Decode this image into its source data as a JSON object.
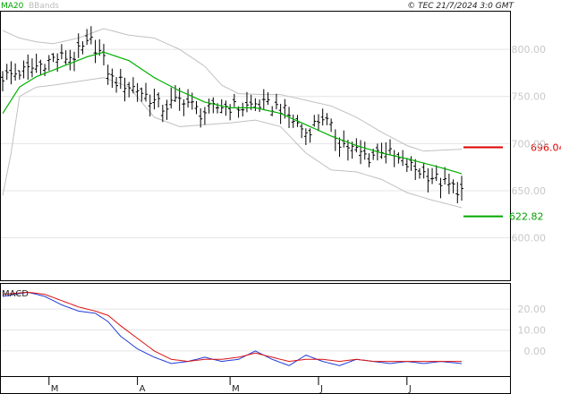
{
  "chart_data": [
    {
      "type": "line",
      "panel": "price",
      "legend": [
        "MA20",
        "BBands"
      ],
      "copyright": "© TEC 21/7/2024 3:0 GMT",
      "y_ticks": [
        800.0,
        750.0,
        700.0,
        650.0,
        600.0
      ],
      "y_tick_labels": [
        "800.00",
        "750.00",
        "700.00",
        "650.00",
        "600.00"
      ],
      "ylim": [
        555,
        840
      ],
      "x_month_labels": [
        "M",
        "A",
        "M",
        "J",
        "J"
      ],
      "x_month_index": [
        11,
        32,
        54,
        75,
        96
      ],
      "n_bars": 110,
      "resistance": {
        "label": "696.04",
        "value": 696.04,
        "color": "#dd0000"
      },
      "support": {
        "label": "622.82",
        "value": 622.82,
        "color": "#00aa00"
      },
      "ohlc_anchors": [
        [
          0,
          771
        ],
        [
          6,
          778
        ],
        [
          12,
          790
        ],
        [
          17,
          793
        ],
        [
          21,
          808
        ],
        [
          23,
          797
        ],
        [
          26,
          768
        ],
        [
          32,
          758
        ],
        [
          38,
          738
        ],
        [
          43,
          748
        ],
        [
          47,
          732
        ],
        [
          52,
          740
        ],
        [
          57,
          738
        ],
        [
          60,
          742
        ],
        [
          66,
          738
        ],
        [
          72,
          712
        ],
        [
          76,
          729
        ],
        [
          80,
          702
        ],
        [
          87,
          685
        ],
        [
          90,
          695
        ],
        [
          94,
          682
        ],
        [
          98,
          673
        ],
        [
          102,
          665
        ],
        [
          105,
          657
        ],
        [
          109,
          650
        ]
      ],
      "ma20_anchors": [
        [
          0,
          732
        ],
        [
          4,
          760
        ],
        [
          8,
          771
        ],
        [
          12,
          778
        ],
        [
          16,
          785
        ],
        [
          20,
          792
        ],
        [
          24,
          797
        ],
        [
          30,
          788
        ],
        [
          36,
          770
        ],
        [
          42,
          756
        ],
        [
          48,
          744
        ],
        [
          54,
          738
        ],
        [
          60,
          738
        ],
        [
          66,
          732
        ],
        [
          72,
          720
        ],
        [
          78,
          708
        ],
        [
          84,
          698
        ],
        [
          90,
          690
        ],
        [
          96,
          684
        ],
        [
          102,
          677
        ],
        [
          106,
          672
        ],
        [
          109,
          668
        ]
      ],
      "bb_upper_anchors": [
        [
          0,
          820
        ],
        [
          4,
          812
        ],
        [
          8,
          808
        ],
        [
          12,
          806
        ],
        [
          18,
          812
        ],
        [
          24,
          822
        ],
        [
          30,
          815
        ],
        [
          36,
          812
        ],
        [
          42,
          800
        ],
        [
          48,
          782
        ],
        [
          52,
          762
        ],
        [
          56,
          753
        ],
        [
          62,
          752
        ],
        [
          66,
          752
        ],
        [
          72,
          746
        ],
        [
          78,
          740
        ],
        [
          84,
          728
        ],
        [
          90,
          712
        ],
        [
          96,
          698
        ],
        [
          100,
          692
        ],
        [
          104,
          693
        ],
        [
          109,
          694
        ]
      ],
      "bb_lower_anchors": [
        [
          0,
          645
        ],
        [
          2,
          690
        ],
        [
          4,
          750
        ],
        [
          8,
          760
        ],
        [
          12,
          762
        ],
        [
          18,
          766
        ],
        [
          24,
          770
        ],
        [
          30,
          760
        ],
        [
          36,
          728
        ],
        [
          42,
          718
        ],
        [
          48,
          720
        ],
        [
          54,
          722
        ],
        [
          60,
          725
        ],
        [
          66,
          718
        ],
        [
          72,
          690
        ],
        [
          78,
          672
        ],
        [
          84,
          670
        ],
        [
          90,
          662
        ],
        [
          96,
          648
        ],
        [
          102,
          640
        ],
        [
          109,
          632
        ]
      ]
    },
    {
      "type": "line",
      "panel": "macd",
      "legend": [
        "MACD"
      ],
      "y_ticks": [
        20.0,
        10.0,
        0.0
      ],
      "y_tick_labels": [
        "20.00",
        "10.00",
        "0.00"
      ],
      "ylim": [
        -12,
        32
      ],
      "series": [
        {
          "color": "#1f3ad6",
          "anchors": [
            [
              0,
              26
            ],
            [
              6,
              28
            ],
            [
              10,
              26
            ],
            [
              14,
              22
            ],
            [
              18,
              19
            ],
            [
              22,
              18
            ],
            [
              25,
              14
            ],
            [
              28,
              7
            ],
            [
              32,
              1
            ],
            [
              36,
              -3
            ],
            [
              40,
              -6
            ],
            [
              44,
              -5
            ],
            [
              48,
              -3
            ],
            [
              52,
              -5
            ],
            [
              56,
              -4
            ],
            [
              60,
              0
            ],
            [
              64,
              -4
            ],
            [
              68,
              -7
            ],
            [
              72,
              -2
            ],
            [
              76,
              -5
            ],
            [
              80,
              -7
            ],
            [
              84,
              -4
            ],
            [
              88,
              -5
            ],
            [
              92,
              -6
            ],
            [
              96,
              -5
            ],
            [
              100,
              -6
            ],
            [
              104,
              -5
            ],
            [
              109,
              -6
            ]
          ]
        },
        {
          "color": "#dd1111",
          "anchors": [
            [
              0,
              27
            ],
            [
              6,
              28
            ],
            [
              10,
              27
            ],
            [
              14,
              24
            ],
            [
              18,
              21
            ],
            [
              22,
              19
            ],
            [
              25,
              17
            ],
            [
              28,
              12
            ],
            [
              32,
              6
            ],
            [
              36,
              0
            ],
            [
              40,
              -4
            ],
            [
              44,
              -5
            ],
            [
              48,
              -4
            ],
            [
              52,
              -4
            ],
            [
              56,
              -3
            ],
            [
              60,
              -1
            ],
            [
              64,
              -3
            ],
            [
              68,
              -5
            ],
            [
              72,
              -4
            ],
            [
              76,
              -4
            ],
            [
              80,
              -5
            ],
            [
              84,
              -4
            ],
            [
              88,
              -5
            ],
            [
              92,
              -5
            ],
            [
              96,
              -5
            ],
            [
              100,
              -5
            ],
            [
              104,
              -5
            ],
            [
              109,
              -5
            ]
          ]
        }
      ]
    }
  ]
}
